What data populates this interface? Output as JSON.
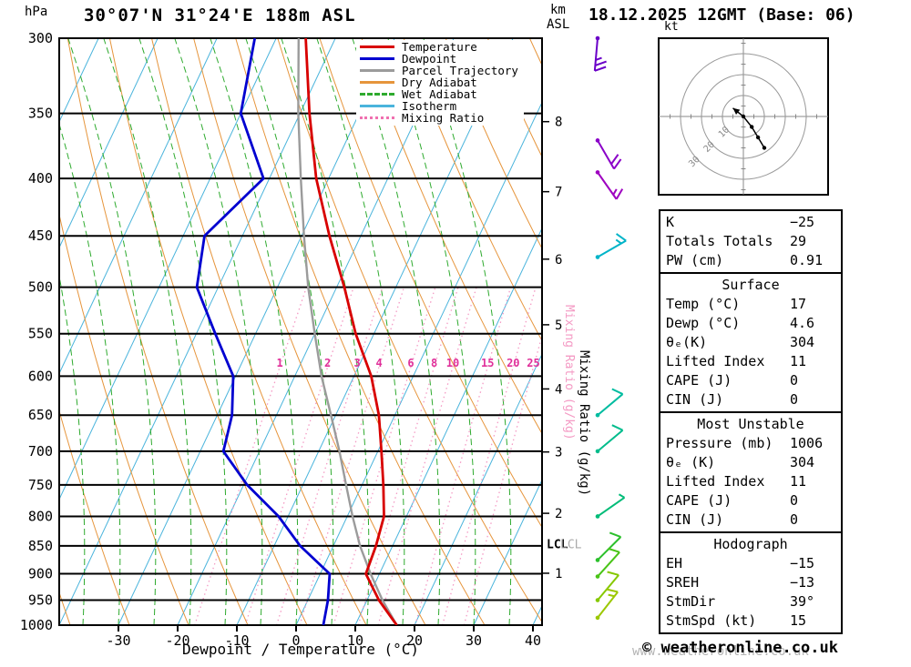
{
  "page": {
    "title_left": "30°07'N 31°24'E 188m ASL",
    "title_right": "18.12.2025 12GMT (Base: 06)",
    "pressure_unit": "hPa",
    "km_label": "km",
    "asl_label": "ASL",
    "kt_label": "kt",
    "xaxis_title": "Dewpoint / Temperature (°C)",
    "mixing_ratio_axis_label": "Mixing Ratio (g/kg)",
    "lcl_label": "LCL",
    "copyright": "© weatheronline.co.uk",
    "watermark": "www.weatheronline.co.uk"
  },
  "legend": [
    {
      "label": "Temperature",
      "color": "#d80000",
      "style": "solid"
    },
    {
      "label": "Dewpoint",
      "color": "#0000d0",
      "style": "solid"
    },
    {
      "label": "Parcel Trajectory",
      "color": "#9b9b9b",
      "style": "solid"
    },
    {
      "label": "Dry Adiabat",
      "color": "#e6953c",
      "style": "solid"
    },
    {
      "label": "Wet Adiabat",
      "color": "#2eaa2e",
      "style": "dashed"
    },
    {
      "label": "Isotherm",
      "color": "#4ab4dc",
      "style": "solid"
    },
    {
      "label": "Mixing Ratio",
      "color": "#f070b0",
      "style": "dotted"
    }
  ],
  "table": {
    "sections": [
      {
        "header": null,
        "rows": [
          [
            "K",
            "−25"
          ],
          [
            "Totals Totals",
            "29"
          ],
          [
            "PW (cm)",
            "0.91"
          ]
        ]
      },
      {
        "header": "Surface",
        "rows": [
          [
            "Temp (°C)",
            "17"
          ],
          [
            "Dewp (°C)",
            "4.6"
          ],
          [
            "θₑ(K)",
            "304"
          ],
          [
            "Lifted Index",
            "11"
          ],
          [
            "CAPE (J)",
            "0"
          ],
          [
            "CIN (J)",
            "0"
          ]
        ]
      },
      {
        "header": "Most Unstable",
        "rows": [
          [
            "Pressure (mb)",
            "1006"
          ],
          [
            "θₑ (K)",
            "304"
          ],
          [
            "Lifted Index",
            "11"
          ],
          [
            "CAPE (J)",
            "0"
          ],
          [
            "CIN (J)",
            "0"
          ]
        ]
      },
      {
        "header": "Hodograph",
        "rows": [
          [
            "EH",
            "−15"
          ],
          [
            "SREH",
            "−13"
          ],
          [
            "StmDir",
            "39°"
          ],
          [
            "StmSpd (kt)",
            "15"
          ]
        ]
      }
    ]
  },
  "chart_data": {
    "type": "line",
    "chart_kind": "skew-t log-p sounding",
    "skew_slope": 0.47,
    "pressure_range_hpa": [
      300,
      1000
    ],
    "temp_axis_range_c": [
      -40,
      41
    ],
    "pressure_levels": [
      300,
      350,
      400,
      450,
      500,
      550,
      600,
      650,
      700,
      750,
      800,
      850,
      900,
      950,
      1000
    ],
    "temp_ticks": [
      -30,
      -20,
      -10,
      0,
      10,
      20,
      30,
      40
    ],
    "isotherms": {
      "min": -80,
      "max": 40,
      "step": 10
    },
    "dry_adiabats": {
      "min": 235,
      "max": 385,
      "step": 10
    },
    "wet_adiabats": {
      "min": -60,
      "max": 36,
      "step": 6
    },
    "mixing_ratio_values": [
      1,
      2,
      3,
      4,
      6,
      8,
      10,
      15,
      20,
      25
    ],
    "temperature_profile": [
      [
        1000,
        17
      ],
      [
        950,
        12
      ],
      [
        900,
        7.7
      ],
      [
        850,
        7.2
      ],
      [
        800,
        6.2
      ],
      [
        750,
        3.6
      ],
      [
        700,
        0.6
      ],
      [
        650,
        -2.7
      ],
      [
        600,
        -7.1
      ],
      [
        550,
        -13.1
      ],
      [
        500,
        -18.7
      ],
      [
        450,
        -25.3
      ],
      [
        400,
        -32.1
      ],
      [
        350,
        -38.4
      ],
      [
        300,
        -45
      ]
    ],
    "dewpoint_profile": [
      [
        1000,
        4.6
      ],
      [
        950,
        3.4
      ],
      [
        900,
        1.6
      ],
      [
        850,
        -5.6
      ],
      [
        800,
        -11.6
      ],
      [
        750,
        -19.4
      ],
      [
        700,
        -26.1
      ],
      [
        650,
        -27.5
      ],
      [
        600,
        -30.4
      ],
      [
        550,
        -36.8
      ],
      [
        500,
        -43.6
      ],
      [
        450,
        -46.4
      ],
      [
        400,
        -41
      ],
      [
        350,
        -50
      ],
      [
        300,
        -53.6
      ]
    ],
    "parcel_profile": [
      [
        1000,
        17
      ],
      [
        950,
        12.6
      ],
      [
        900,
        8.5
      ],
      [
        850,
        4.5
      ],
      [
        800,
        0.9
      ],
      [
        750,
        -2.7
      ],
      [
        700,
        -6.5
      ],
      [
        650,
        -10.8
      ],
      [
        600,
        -15.5
      ],
      [
        550,
        -20
      ],
      [
        500,
        -24.8
      ],
      [
        450,
        -29.6
      ],
      [
        400,
        -34.7
      ],
      [
        350,
        -40.3
      ],
      [
        300,
        -46.2
      ]
    ],
    "lcl_pressure": 848,
    "km_ticks": [
      {
        "km": 8,
        "p": 356
      },
      {
        "km": 7,
        "p": 411
      },
      {
        "km": 6,
        "p": 472
      },
      {
        "km": 5,
        "p": 540
      },
      {
        "km": 4,
        "p": 616
      },
      {
        "km": 3,
        "p": 701
      },
      {
        "km": 2,
        "p": 795
      },
      {
        "km": 1,
        "p": 899
      }
    ],
    "wind_barbs": [
      {
        "p": 300,
        "dir": 185,
        "speed": 25,
        "color": "#6a00c8"
      },
      {
        "p": 370,
        "dir": 150,
        "speed": 20,
        "color": "#8a00c8"
      },
      {
        "p": 395,
        "dir": 145,
        "speed": 15,
        "color": "#9e00c0"
      },
      {
        "p": 470,
        "dir": 60,
        "speed": 15,
        "color": "#00b4c8"
      },
      {
        "p": 650,
        "dir": 50,
        "speed": 10,
        "color": "#00bca0"
      },
      {
        "p": 700,
        "dir": 50,
        "speed": 10,
        "color": "#00bc8c"
      },
      {
        "p": 800,
        "dir": 55,
        "speed": 5,
        "color": "#00bc78"
      },
      {
        "p": 875,
        "dir": 45,
        "speed": 10,
        "color": "#2cc02c"
      },
      {
        "p": 905,
        "dir": 42,
        "speed": 10,
        "color": "#49c417"
      },
      {
        "p": 950,
        "dir": 40,
        "speed": 10,
        "color": "#86c800"
      },
      {
        "p": 985,
        "dir": 38,
        "speed": 15,
        "color": "#9cc800"
      }
    ],
    "hodograph": {
      "rings_kt": [
        10,
        20,
        30
      ],
      "trace_kt": [
        [
          0,
          0
        ],
        [
          4,
          -5
        ],
        [
          7,
          -10
        ],
        [
          10,
          -15
        ]
      ],
      "storm_vector_kt": [
        -5,
        4
      ]
    },
    "colors": {
      "temperature": "#d80000",
      "dewpoint": "#0000d0",
      "parcel": "#9b9b9b",
      "dry_adiabat": "#e6953c",
      "wet_adiabat": "#2eaa2e",
      "isotherm": "#4ab4dc",
      "mixing_ratio": "#f49ac4",
      "mixing_ratio_label": "#e0309a"
    }
  }
}
